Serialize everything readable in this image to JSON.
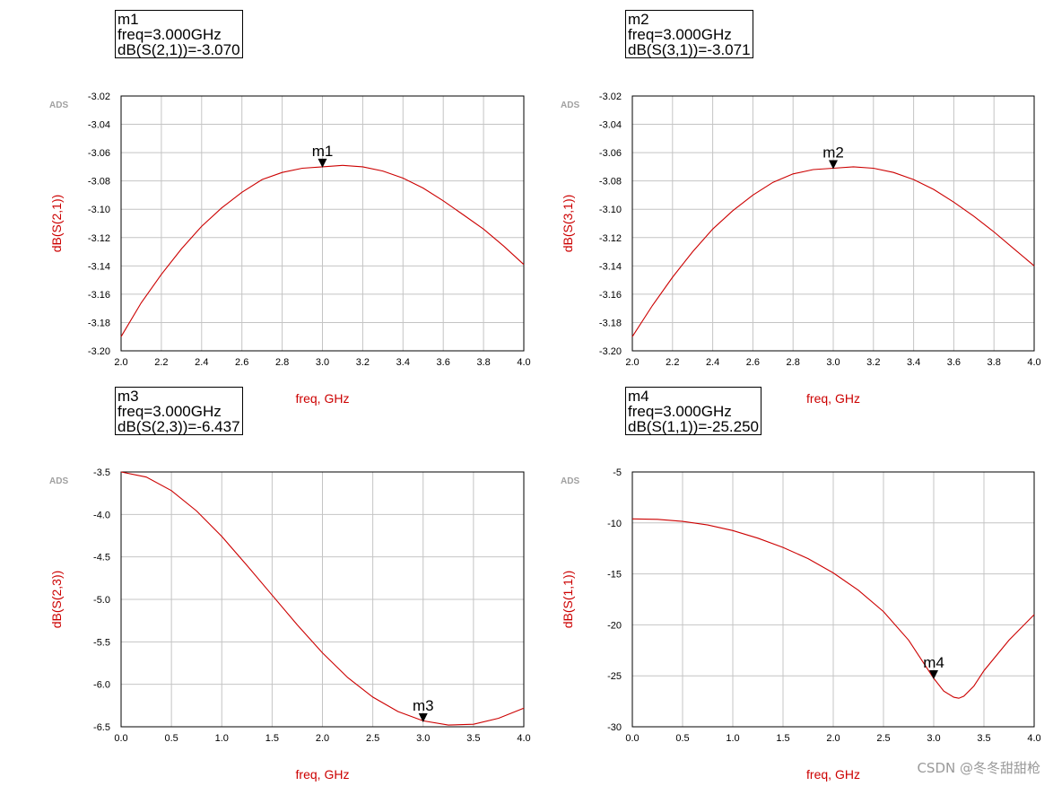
{
  "chart_data": [
    {
      "type": "line",
      "brand_text": "ADS",
      "xlabel": "freq, GHz",
      "ylabel": "dB(S(2,1))",
      "xlim": [
        2.0,
        4.0
      ],
      "ylim": [
        -3.2,
        -3.02
      ],
      "x_ticks": [
        "2.0",
        "2.2",
        "2.4",
        "2.6",
        "2.8",
        "3.0",
        "3.2",
        "3.4",
        "3.6",
        "3.8",
        "4.0"
      ],
      "y_ticks": [
        "-3.02",
        "-3.04",
        "-3.06",
        "-3.08",
        "-3.10",
        "-3.12",
        "-3.14",
        "-3.16",
        "-3.18",
        "-3.20"
      ],
      "grid": true,
      "line_color": "#cc0000",
      "series": [
        {
          "x": [
            2.0,
            2.1,
            2.2,
            2.3,
            2.4,
            2.5,
            2.6,
            2.7,
            2.8,
            2.9,
            3.0,
            3.1,
            3.2,
            3.3,
            3.4,
            3.5,
            3.6,
            3.7,
            3.8,
            3.9,
            4.0
          ],
          "values": [
            -3.19,
            -3.166,
            -3.146,
            -3.128,
            -3.112,
            -3.099,
            -3.088,
            -3.079,
            -3.074,
            -3.071,
            -3.07,
            -3.069,
            -3.07,
            -3.073,
            -3.078,
            -3.085,
            -3.094,
            -3.104,
            -3.114,
            -3.126,
            -3.139
          ]
        }
      ],
      "marker": {
        "name": "m1",
        "x": 3.0,
        "y": -3.07,
        "lines": [
          "m1",
          "freq=3.000GHz",
          "dB(S(2,1))=-3.070"
        ]
      }
    },
    {
      "type": "line",
      "brand_text": "ADS",
      "xlabel": "freq, GHz",
      "ylabel": "dB(S(3,1))",
      "xlim": [
        2.0,
        4.0
      ],
      "ylim": [
        -3.2,
        -3.02
      ],
      "x_ticks": [
        "2.0",
        "2.2",
        "2.4",
        "2.6",
        "2.8",
        "3.0",
        "3.2",
        "3.4",
        "3.6",
        "3.8",
        "4.0"
      ],
      "y_ticks": [
        "-3.02",
        "-3.04",
        "-3.06",
        "-3.08",
        "-3.10",
        "-3.12",
        "-3.14",
        "-3.16",
        "-3.18",
        "-3.20"
      ],
      "grid": true,
      "line_color": "#cc0000",
      "series": [
        {
          "x": [
            2.0,
            2.1,
            2.2,
            2.3,
            2.4,
            2.5,
            2.6,
            2.7,
            2.8,
            2.9,
            3.0,
            3.1,
            3.2,
            3.3,
            3.4,
            3.5,
            3.6,
            3.7,
            3.8,
            3.9,
            4.0
          ],
          "values": [
            -3.19,
            -3.168,
            -3.148,
            -3.13,
            -3.114,
            -3.101,
            -3.09,
            -3.081,
            -3.075,
            -3.072,
            -3.071,
            -3.07,
            -3.071,
            -3.074,
            -3.079,
            -3.086,
            -3.095,
            -3.105,
            -3.116,
            -3.128,
            -3.14
          ]
        }
      ],
      "marker": {
        "name": "m2",
        "x": 3.0,
        "y": -3.071,
        "lines": [
          "m2",
          "freq=3.000GHz",
          "dB(S(3,1))=-3.071"
        ]
      }
    },
    {
      "type": "line",
      "brand_text": "ADS",
      "xlabel": "freq, GHz",
      "ylabel": "dB(S(2,3))",
      "xlim": [
        0.0,
        4.0
      ],
      "ylim": [
        -6.5,
        -3.5
      ],
      "x_ticks": [
        "0.0",
        "0.5",
        "1.0",
        "1.5",
        "2.0",
        "2.5",
        "3.0",
        "3.5",
        "4.0"
      ],
      "y_ticks": [
        "-3.5",
        "-4.0",
        "-4.5",
        "-5.0",
        "-5.5",
        "-6.0",
        "-6.5"
      ],
      "grid": true,
      "line_color": "#cc0000",
      "series": [
        {
          "x": [
            0.0,
            0.25,
            0.5,
            0.75,
            1.0,
            1.25,
            1.5,
            1.75,
            2.0,
            2.25,
            2.5,
            2.75,
            3.0,
            3.25,
            3.5,
            3.75,
            4.0
          ],
          "values": [
            -3.5,
            -3.56,
            -3.72,
            -3.96,
            -4.26,
            -4.6,
            -4.95,
            -5.3,
            -5.63,
            -5.92,
            -6.15,
            -6.32,
            -6.43,
            -6.48,
            -6.47,
            -6.4,
            -6.28
          ]
        }
      ],
      "marker": {
        "name": "m3",
        "x": 3.0,
        "y": -6.437,
        "lines": [
          "m3",
          "freq=3.000GHz",
          "dB(S(2,3))=-6.437"
        ]
      }
    },
    {
      "type": "line",
      "brand_text": "ADS",
      "xlabel": "freq, GHz",
      "ylabel": "dB(S(1,1))",
      "xlim": [
        0.0,
        4.0
      ],
      "ylim": [
        -30,
        -5
      ],
      "x_ticks": [
        "0.0",
        "0.5",
        "1.0",
        "1.5",
        "2.0",
        "2.5",
        "3.0",
        "3.5",
        "4.0"
      ],
      "y_ticks": [
        "-5",
        "-10",
        "-15",
        "-20",
        "-25",
        "-30"
      ],
      "grid": true,
      "line_color": "#cc0000",
      "series": [
        {
          "x": [
            0.0,
            0.25,
            0.5,
            0.75,
            1.0,
            1.25,
            1.5,
            1.75,
            2.0,
            2.25,
            2.5,
            2.75,
            3.0,
            3.1,
            3.2,
            3.25,
            3.3,
            3.4,
            3.5,
            3.75,
            4.0
          ],
          "values": [
            -9.6,
            -9.65,
            -9.85,
            -10.2,
            -10.75,
            -11.5,
            -12.4,
            -13.5,
            -14.9,
            -16.6,
            -18.7,
            -21.5,
            -25.25,
            -26.5,
            -27.1,
            -27.2,
            -27.0,
            -26.0,
            -24.5,
            -21.5,
            -19.0
          ]
        }
      ],
      "marker": {
        "name": "m4",
        "x": 3.0,
        "y": -25.25,
        "lines": [
          "m4",
          "freq=3.000GHz",
          "dB(S(1,1))=-25.250"
        ]
      }
    }
  ],
  "watermark": "CSDN @冬冬甜甜枪"
}
